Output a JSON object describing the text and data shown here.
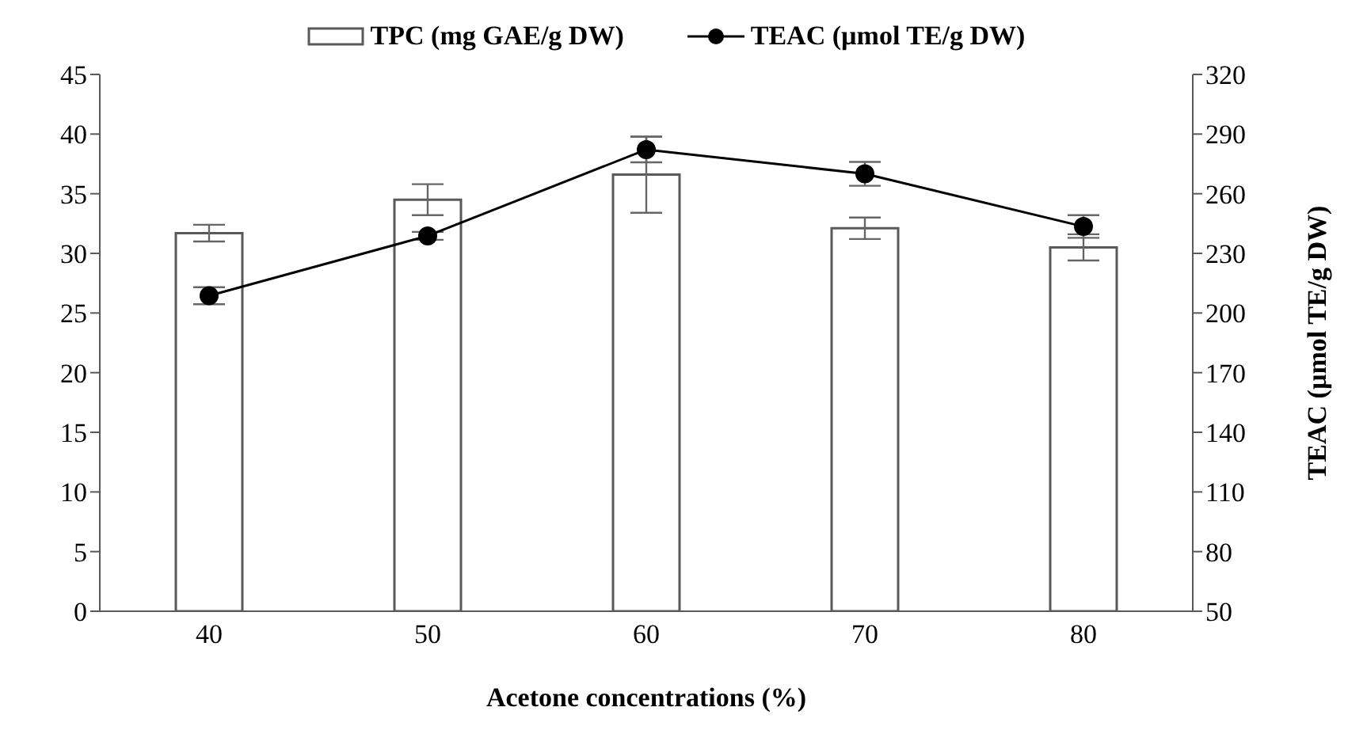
{
  "chart_data": {
    "type": "bar",
    "xlabel": "Acetone concentrations (%)",
    "y2label": "TEAC (µmol TE/g DW)",
    "categories": [
      "40",
      "50",
      "60",
      "70",
      "80"
    ],
    "series": [
      {
        "name": "TPC (mg GAE/g DW)",
        "color": "#ffffff",
        "values": [
          31.7,
          34.5,
          36.6,
          32.1,
          30.5
        ],
        "errors": [
          0.7,
          1.3,
          3.2,
          0.9,
          1.1
        ]
      },
      {
        "name": "TEAC (µmol TE/g DW)",
        "type": "line",
        "axis": "y2",
        "color": "#000000",
        "marker": "circle",
        "values": [
          208.7,
          238.8,
          282.2,
          270,
          243.5
        ],
        "errors": [
          4.3,
          2,
          6.4,
          6,
          5.7
        ]
      }
    ],
    "ylim": [
      0,
      45
    ],
    "yticks": [
      0,
      5,
      10,
      15,
      20,
      25,
      30,
      35,
      40,
      45
    ],
    "y2lim": [
      50,
      320
    ],
    "y2ticks": [
      50,
      80,
      110,
      140,
      170,
      200,
      230,
      260,
      290,
      320
    ],
    "legend": "top"
  }
}
